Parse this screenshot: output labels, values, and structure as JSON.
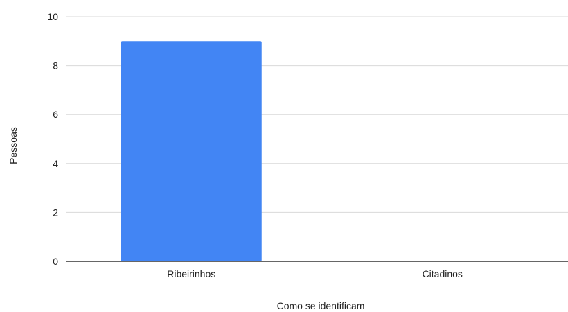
{
  "chart_data": {
    "type": "bar",
    "categories": [
      "Ribeirinhos",
      "Citadinos"
    ],
    "values": [
      9,
      0
    ],
    "xlabel": "Como se identificam",
    "ylabel": "Pessoas",
    "ylim": [
      0,
      10
    ],
    "yticks": [
      0,
      2,
      4,
      6,
      8,
      10
    ],
    "grid": true,
    "legend": "none",
    "bar_color": "#4285f4",
    "grid_color": "#d9d9d9",
    "axis_color": "#333333"
  }
}
